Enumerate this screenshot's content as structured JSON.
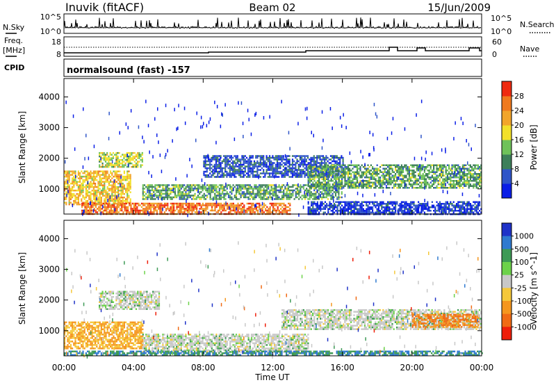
{
  "header": {
    "station": "Inuvik (fitACF)",
    "beam": "Beam 02",
    "date": "15/Jun/2009"
  },
  "top_panels": {
    "nsky_label": "N.Sky",
    "nsearch_label": "N.Search",
    "noise_ticks": [
      "10^5",
      "10^0"
    ],
    "freq_label": "Freq.",
    "freq_unit": "[MHz]",
    "freq_ticks": [
      "18",
      "8"
    ],
    "nave_label": "Nave",
    "nave_ticks": [
      "60",
      "0"
    ],
    "cpid_label": "CPID",
    "cpid_value": "normalsound (fast) -157"
  },
  "chart_data": [
    {
      "type": "heatmap",
      "panel": "power",
      "ylabel": "Slant Range [km]",
      "ylim": [
        180,
        4600
      ],
      "yticks": [
        1000,
        2000,
        3000,
        4000
      ],
      "xlim": [
        "00:00",
        "24:00"
      ],
      "colorbar": {
        "label": "Power [dB]",
        "ticks": [
          4,
          8,
          12,
          16,
          20,
          24,
          28
        ],
        "colors": [
          "#0a1ee6",
          "#2f55c8",
          "#3d7f5a",
          "#6fc25a",
          "#f2e02a",
          "#f2a52a",
          "#f07a1e",
          "#ef2a10"
        ]
      },
      "bands": [
        {
          "t0": 0.0,
          "t1": 3.8,
          "r0": 500,
          "r1": 1600,
          "level": 20
        },
        {
          "t0": 2.0,
          "t1": 4.5,
          "r0": 1700,
          "r1": 2200,
          "level": 16
        },
        {
          "t0": 1.0,
          "t1": 13.0,
          "r0": 200,
          "r1": 550,
          "level": 26
        },
        {
          "t0": 4.5,
          "t1": 16.0,
          "r0": 650,
          "r1": 1150,
          "level": 12
        },
        {
          "t0": 8.0,
          "t1": 16.0,
          "r0": 1400,
          "r1": 2100,
          "level": 6
        },
        {
          "t0": 14.0,
          "t1": 24.0,
          "r0": 1050,
          "r1": 1800,
          "level": 12
        },
        {
          "t0": 14.0,
          "t1": 24.0,
          "r0": 200,
          "r1": 600,
          "level": 4
        }
      ]
    },
    {
      "type": "heatmap",
      "panel": "velocity",
      "ylabel": "Slant Range [km]",
      "ylim": [
        180,
        4600
      ],
      "yticks": [
        1000,
        2000,
        3000,
        4000
      ],
      "xlim": [
        "00:00",
        "24:00"
      ],
      "xticks": [
        "00:00",
        "04:00",
        "08:00",
        "12:00",
        "16:00",
        "20:00",
        "00:00"
      ],
      "xlabel": "Time UT",
      "colorbar": {
        "label": "Velocity [m s^-1]",
        "ticks": [
          1000,
          500,
          100,
          25,
          -25,
          -100,
          -500,
          -1000
        ],
        "colors": [
          "#1e32c8",
          "#2f7ad0",
          "#3d9a55",
          "#6cd24a",
          "#c8c8c8",
          "#f5c83a",
          "#f5961e",
          "#f06a14",
          "#ee1e0a"
        ]
      },
      "bands": [
        {
          "t0": 0.0,
          "t1": 4.5,
          "r0": 400,
          "r1": 1300,
          "level": -100
        },
        {
          "t0": 2.0,
          "t1": 5.5,
          "r0": 1700,
          "r1": 2300,
          "level": 0
        },
        {
          "t0": 4.5,
          "t1": 14.0,
          "r0": 300,
          "r1": 900,
          "level": 0
        },
        {
          "t0": 12.5,
          "t1": 24.0,
          "r0": 1050,
          "r1": 1700,
          "level": 0
        },
        {
          "t0": 20.0,
          "t1": 23.8,
          "r0": 1100,
          "r1": 1550,
          "level": -500
        },
        {
          "t0": 0.0,
          "t1": 24.0,
          "r0": 180,
          "r1": 350,
          "level": 100
        }
      ]
    }
  ]
}
